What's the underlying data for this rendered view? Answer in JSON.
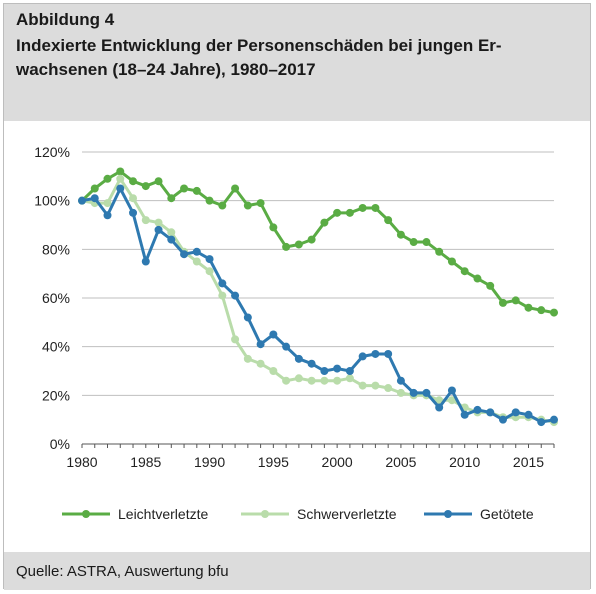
{
  "header": {
    "figure_label": "Abbildung 4",
    "title": "Indexierte Entwicklung der Personenschäden bei jungen Er-wachsenen (18–24 Jahre), 1980–2017"
  },
  "footer": {
    "source": "Quelle: ASTRA, Auswertung bfu"
  },
  "chart_data": {
    "type": "line",
    "x": [
      1980,
      1981,
      1982,
      1983,
      1984,
      1985,
      1986,
      1987,
      1988,
      1989,
      1990,
      1991,
      1992,
      1993,
      1994,
      1995,
      1996,
      1997,
      1998,
      1999,
      2000,
      2001,
      2002,
      2003,
      2004,
      2005,
      2006,
      2007,
      2008,
      2009,
      2010,
      2011,
      2012,
      2013,
      2014,
      2015,
      2016,
      2017
    ],
    "series": [
      {
        "name": "Leichtverletzte",
        "color": "#5aac44",
        "values": [
          100,
          105,
          109,
          112,
          108,
          106,
          108,
          101,
          105,
          104,
          100,
          98,
          105,
          98,
          99,
          89,
          81,
          82,
          84,
          91,
          95,
          95,
          97,
          97,
          92,
          86,
          83,
          83,
          79,
          75,
          71,
          68,
          65,
          58,
          59,
          56,
          55,
          54
        ]
      },
      {
        "name": "Schwerverletzte",
        "color": "#b9dcaa",
        "values": [
          100,
          99,
          99,
          109,
          101,
          92,
          91,
          87,
          79,
          75,
          71,
          61,
          43,
          35,
          33,
          30,
          26,
          27,
          26,
          26,
          26,
          27,
          24,
          24,
          23,
          21,
          20,
          20,
          18,
          18,
          15,
          13,
          13,
          11,
          11,
          11,
          10,
          9
        ]
      },
      {
        "name": "Getötete",
        "color": "#2e79b0",
        "values": [
          100,
          101,
          94,
          105,
          95,
          75,
          88,
          84,
          78,
          79,
          76,
          66,
          61,
          52,
          41,
          45,
          40,
          35,
          33,
          30,
          31,
          30,
          36,
          37,
          37,
          26,
          21,
          21,
          15,
          22,
          12,
          14,
          13,
          10,
          13,
          12,
          9,
          10
        ]
      }
    ],
    "xlim": [
      1980,
      2017
    ],
    "ylim": [
      0,
      120
    ],
    "x_ticks": [
      1980,
      1985,
      1990,
      1995,
      2000,
      2005,
      2010,
      2015
    ],
    "y_ticks": [
      {
        "value": 0,
        "label": "0%"
      },
      {
        "value": 20,
        "label": "20%"
      },
      {
        "value": 40,
        "label": "40%"
      },
      {
        "value": 60,
        "label": "60%"
      },
      {
        "value": 80,
        "label": "80%"
      },
      {
        "value": 100,
        "label": "100%"
      },
      {
        "value": 120,
        "label": "120%"
      }
    ],
    "grid": true,
    "legend_position": "bottom"
  }
}
